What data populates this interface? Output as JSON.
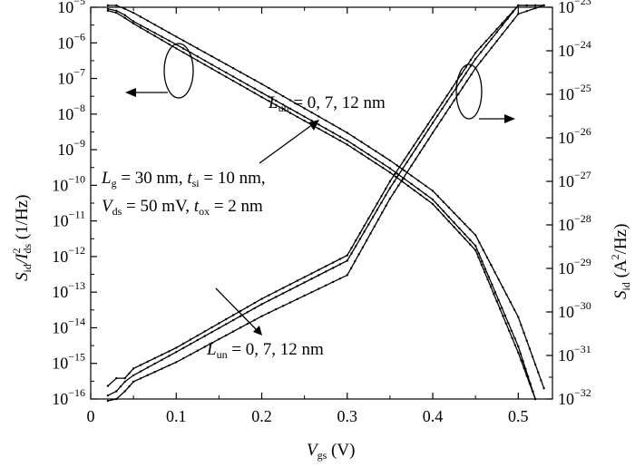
{
  "chart_data": {
    "type": "line",
    "x_axis": {
      "label": "V",
      "label_sub": "gs",
      "label_unit": " (V)",
      "range": [
        0,
        0.54
      ],
      "ticks": [
        0,
        0.1,
        0.2,
        0.3,
        0.4,
        0.5
      ],
      "tick_labels": [
        "0",
        "0.1",
        "0.2",
        "0.3",
        "0.4",
        "0.5"
      ]
    },
    "y_left": {
      "label": "S",
      "label_sub": "id",
      "label_mid": "/I",
      "label_sup": "2",
      "label_sub2": "ds",
      "label_unit": " (1/Hz)",
      "scale": "log",
      "range": [
        1e-16,
        1e-05
      ],
      "tick_exponents": [
        -16,
        -15,
        -14,
        -13,
        -12,
        -11,
        -10,
        -9,
        -8,
        -7,
        -6,
        -5
      ],
      "tick_base": "10"
    },
    "y_right": {
      "label": "S",
      "label_sub": "id",
      "label_unit_pre": " (A",
      "label_unit_sup": "2",
      "label_unit_post": "/Hz)",
      "scale": "log",
      "range": [
        1e-32,
        1e-23
      ],
      "tick_exponents": [
        -32,
        -31,
        -30,
        -29,
        -28,
        -27,
        -26,
        -25,
        -24,
        -23
      ],
      "tick_base": "10"
    },
    "series_normalized_left_axis": [
      {
        "x": [
          0.02,
          0.03,
          0.04,
          0.05,
          0.1,
          0.2,
          0.3,
          0.35,
          0.4,
          0.45,
          0.5,
          0.53
        ],
        "y": [
          3e-05,
          1.5e-05,
          9e-06,
          7e-06,
          1.5e-06,
          7e-08,
          3e-09,
          5e-10,
          7e-11,
          4e-12,
          2e-14,
          2e-16
        ]
      },
      {
        "x": [
          0.02,
          0.03,
          0.04,
          0.05,
          0.1,
          0.2,
          0.3,
          0.35,
          0.4,
          0.45,
          0.5,
          0.52
        ],
        "y": [
          9e-06,
          8e-06,
          6e-06,
          4e-06,
          9e-07,
          4e-08,
          1.8e-09,
          3e-10,
          4e-11,
          2e-12,
          3e-15,
          1e-16
        ]
      },
      {
        "x": [
          0.02,
          0.03,
          0.04,
          0.05,
          0.1,
          0.2,
          0.3,
          0.35,
          0.4,
          0.45,
          0.5,
          0.52
        ],
        "y": [
          8e-06,
          7e-06,
          5e-06,
          3.5e-06,
          7e-07,
          3e-08,
          1.4e-09,
          2.3e-10,
          3e-11,
          1.5e-12,
          2e-15,
          1e-16
        ]
      }
    ],
    "series_absolute_right_axis": [
      {
        "x": [
          0.02,
          0.03,
          0.04,
          0.05,
          0.1,
          0.2,
          0.3,
          0.35,
          0.4,
          0.45,
          0.5,
          0.53
        ],
        "y": [
          2e-32,
          3e-32,
          3e-32,
          5e-32,
          1.5e-31,
          2e-30,
          2e-29,
          1e-27,
          3e-26,
          9e-25,
          1.6e-23,
          6e-23
        ]
      },
      {
        "x": [
          0.02,
          0.03,
          0.04,
          0.05,
          0.1,
          0.2,
          0.3,
          0.35,
          0.4,
          0.45,
          0.5,
          0.53
        ],
        "y": [
          1.2e-32,
          1.5e-32,
          2.5e-32,
          3.5e-32,
          1.2e-31,
          1.5e-30,
          1.5e-29,
          7e-28,
          2.2e-26,
          6.5e-25,
          1.2e-23,
          4.5e-23
        ]
      },
      {
        "x": [
          0.02,
          0.03,
          0.04,
          0.05,
          0.1,
          0.2,
          0.3,
          0.35,
          0.4,
          0.45,
          0.5,
          0.53
        ],
        "y": [
          6e-33,
          1e-32,
          1.5e-32,
          2.5e-32,
          7e-32,
          8e-31,
          7e-30,
          4e-28,
          1.3e-26,
          4e-25,
          7e-24,
          2.8e-23
        ]
      }
    ],
    "annotations": {
      "lun_top": {
        "base": "L",
        "sub": "un",
        "rest": " = 0, 7, 12 nm"
      },
      "lun_bottom": {
        "base": "L",
        "sub": "un",
        "rest": " = 0, 7, 12 nm"
      },
      "params_line1": {
        "p1": "L",
        "p1_sub": "g",
        "p1_rest": " = 30 nm, ",
        "p2": "t",
        "p2_sub": "si",
        "p2_rest": " = 10 nm,"
      },
      "params_line2": {
        "p1": "V",
        "p1_sub": "ds",
        "p1_rest": " = 50 mV, ",
        "p2": "t",
        "p2_sub": "ox",
        "p2_rest": " = 2 nm"
      }
    },
    "grid": false,
    "legend": "none"
  }
}
